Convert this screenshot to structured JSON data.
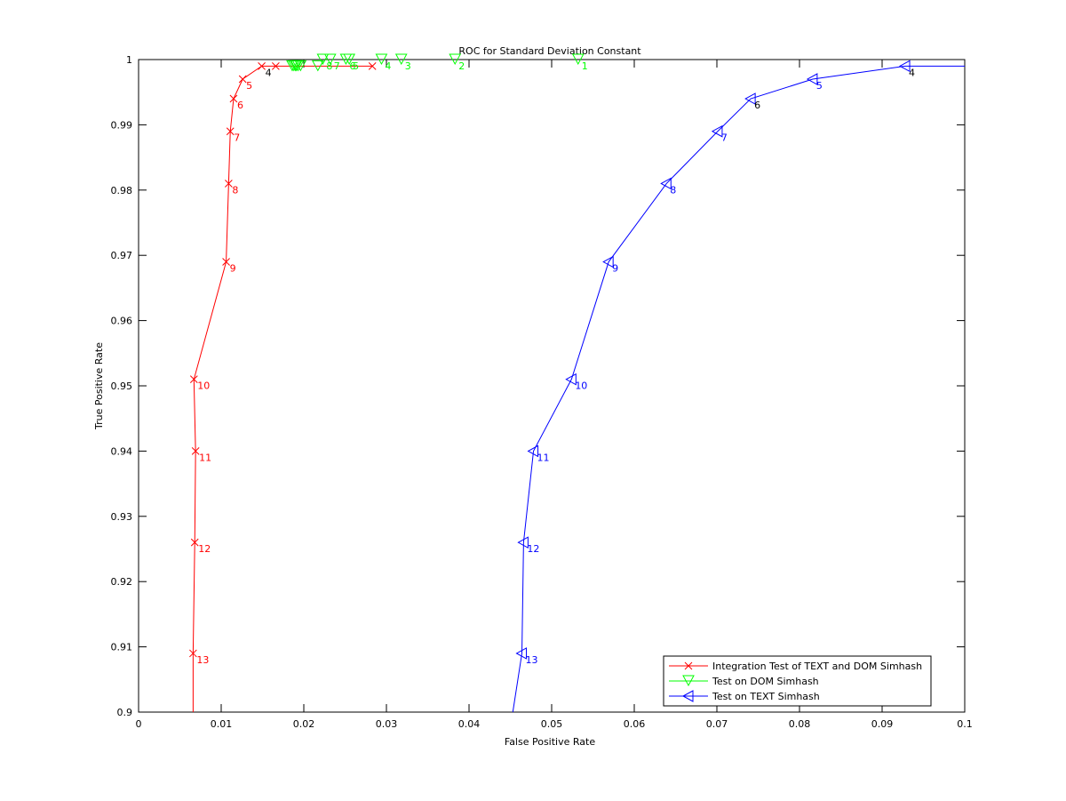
{
  "chart_data": {
    "type": "line",
    "title": "ROC for Standard Deviation Constant",
    "xlabel": "False Positive Rate",
    "ylabel": "True Positive Rate",
    "xlim": [
      0,
      0.1
    ],
    "ylim": [
      0.9,
      1.0
    ],
    "xticks": [
      "0",
      "0.01",
      "0.02",
      "0.03",
      "0.04",
      "0.05",
      "0.06",
      "0.07",
      "0.08",
      "0.09",
      "0.1"
    ],
    "yticks": [
      "0.9",
      "0.91",
      "0.92",
      "0.93",
      "0.94",
      "0.95",
      "0.96",
      "0.97",
      "0.98",
      "0.99",
      "1"
    ],
    "grid": false,
    "legend_position": "bottom-right",
    "series": [
      {
        "name": "Integration Test of TEXT and DOM Simhash",
        "color": "#ff0000",
        "marker": "x",
        "x": [
          0.0283,
          0.0166,
          0.0149,
          0.0126,
          0.0115,
          0.0111,
          0.0109,
          0.0106,
          0.0067,
          0.0069,
          0.0068,
          0.0066,
          0.0066
        ],
        "y": [
          0.999,
          0.999,
          0.999,
          0.997,
          0.994,
          0.989,
          0.981,
          0.969,
          0.951,
          0.94,
          0.926,
          0.909,
          0.9
        ],
        "labels": [
          "",
          "",
          "4",
          "5",
          "6",
          "7",
          "8",
          "9",
          "10",
          "11",
          "12",
          "13",
          ""
        ],
        "label_colors": [
          "",
          "",
          "#000000",
          "#ff0000",
          "#ff0000",
          "#ff0000",
          "#ff0000",
          "#ff0000",
          "#ff0000",
          "#ff0000",
          "#ff0000",
          "#ff0000",
          ""
        ]
      },
      {
        "name": "Test on DOM Simhash",
        "color": "#00ff00",
        "marker": "triangle-down",
        "x": [
          0.0532,
          0.0383,
          0.0318,
          0.0294,
          0.0255,
          0.0251,
          0.0232,
          0.0223,
          0.0217,
          0.0196,
          0.0193,
          0.0191,
          0.019,
          0.0188,
          0.0186
        ],
        "y": [
          1.0,
          1.0,
          1.0,
          1.0,
          1.0,
          1.0,
          1.0,
          1.0,
          0.999,
          0.999,
          0.999,
          0.999,
          0.999,
          0.999,
          0.999
        ],
        "labels": [
          "1",
          "2",
          "3",
          "4",
          "5",
          "6",
          "7",
          "8",
          "",
          "",
          "",
          "",
          "",
          "",
          ""
        ],
        "line": false
      },
      {
        "name": "Test on TEXT Simhash",
        "color": "#0000ff",
        "marker": "triangle-left",
        "x": [
          0.1,
          0.0928,
          0.0816,
          0.0741,
          0.0701,
          0.0639,
          0.0569,
          0.0524,
          0.0478,
          0.0466,
          0.0464,
          0.0453
        ],
        "y": [
          0.999,
          0.999,
          0.997,
          0.994,
          0.989,
          0.981,
          0.969,
          0.951,
          0.94,
          0.926,
          0.909,
          0.9
        ],
        "labels": [
          "",
          "4",
          "5",
          "6",
          "7",
          "8",
          "9",
          "10",
          "11",
          "12",
          "13",
          ""
        ],
        "label_colors": [
          "",
          "#000000",
          "#0000ff",
          "#000000",
          "#0000ff",
          "#0000ff",
          "#0000ff",
          "#0000ff",
          "#0000ff",
          "#0000ff",
          "#0000ff",
          ""
        ]
      }
    ]
  }
}
